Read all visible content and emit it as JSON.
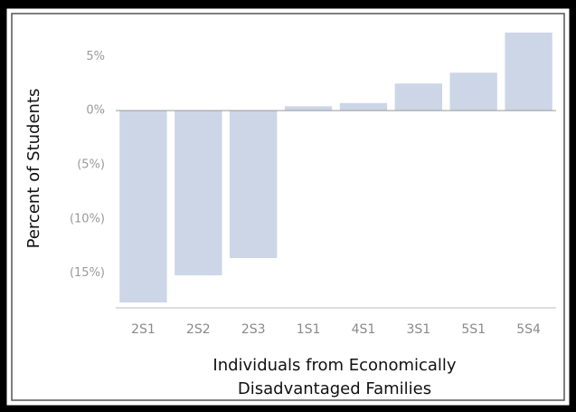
{
  "chart_data": {
    "type": "bar",
    "y_label": "Percent of Students",
    "x_label": [
      "Individuals from Economically",
      "Disadvantaged Families"
    ],
    "categories": [
      "2S1",
      "2S2",
      "2S3",
      "1S1",
      "4S1",
      "3S1",
      "5S1",
      "5S4"
    ],
    "values": [
      -17.7,
      -15.2,
      -13.6,
      0.4,
      0.7,
      2.5,
      3.5,
      7.2
    ],
    "color": "#ccd6e6",
    "ylim": [
      -18.2,
      7.7
    ],
    "yticks": [
      {
        "value": 5,
        "label": "5%"
      },
      {
        "value": 0,
        "label": "0%"
      },
      {
        "value": -5,
        "label": "(5%)"
      },
      {
        "value": -10,
        "label": "(10%)"
      },
      {
        "value": -15,
        "label": "(15%)"
      }
    ]
  }
}
